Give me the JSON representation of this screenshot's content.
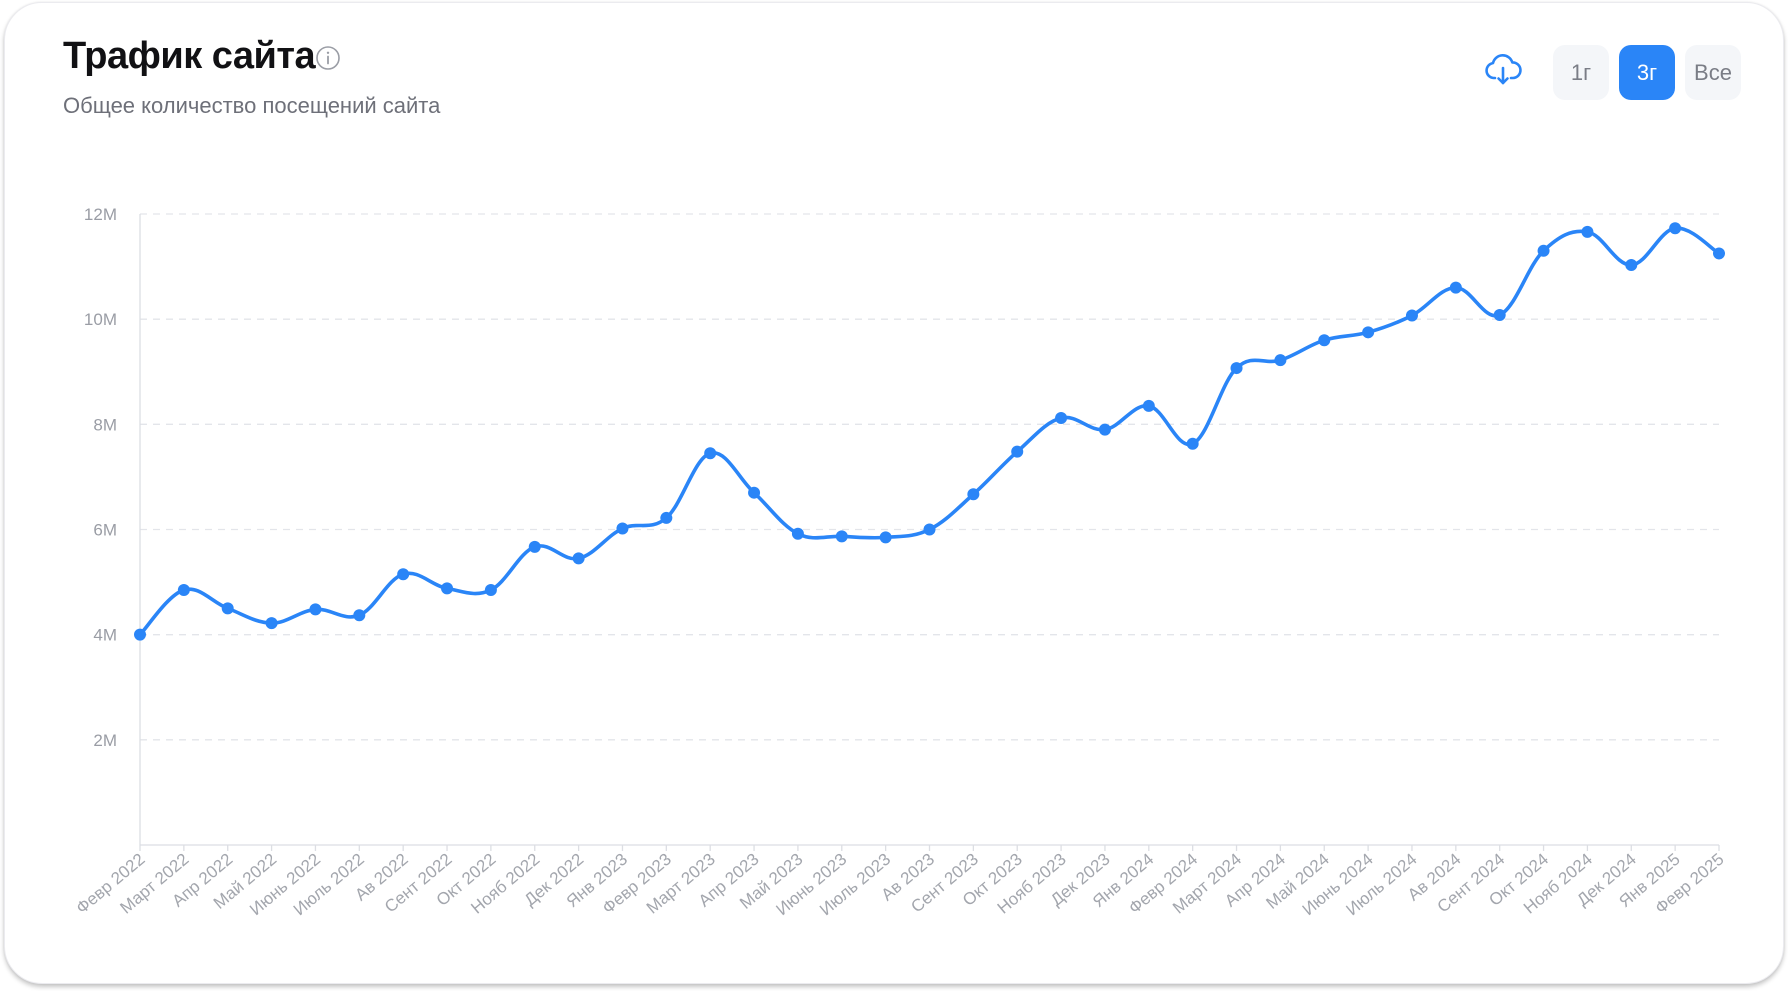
{
  "header": {
    "title": "Трафик сайта",
    "subtitle": "Общее количество посещений сайта"
  },
  "icons": {
    "info": "info-icon",
    "download": "cloud-download-icon"
  },
  "range_buttons": [
    {
      "label": "1г",
      "active": false
    },
    {
      "label": "3г",
      "active": true
    },
    {
      "label": "Все",
      "active": false
    }
  ],
  "colors": {
    "accent": "#2a85f7",
    "grid": "#e3e5ea",
    "axis": "#dcdee3"
  },
  "chart_data": {
    "type": "line",
    "grid": true,
    "ylim": [
      0,
      12
    ],
    "yticks": [
      {
        "value": 2,
        "label": "2M"
      },
      {
        "value": 4,
        "label": "4M"
      },
      {
        "value": 6,
        "label": "6M"
      },
      {
        "value": 8,
        "label": "8M"
      },
      {
        "value": 10,
        "label": "10M"
      },
      {
        "value": 12,
        "label": "12M"
      }
    ],
    "categories": [
      "Февр 2022",
      "Март 2022",
      "Апр 2022",
      "Май 2022",
      "Июнь 2022",
      "Июль 2022",
      "Ав 2022",
      "Сент 2022",
      "Окт 2022",
      "Нояб 2022",
      "Дек 2022",
      "Янв 2023",
      "Февр 2023",
      "Март 2023",
      "Апр 2023",
      "Май 2023",
      "Июнь 2023",
      "Июль 2023",
      "Ав 2023",
      "Сент 2023",
      "Окт 2023",
      "Нояб 2023",
      "Дек 2023",
      "Янв 2024",
      "Февр 2024",
      "Март 2024",
      "Апр 2024",
      "Май 2024",
      "Июнь 2024",
      "Июль 2024",
      "Ав 2024",
      "Сент 2024",
      "Окт 2024",
      "Нояб 2024",
      "Дек 2024",
      "Янв 2025",
      "Февр 2025"
    ],
    "series": [
      {
        "values": [
          4.0,
          4.85,
          4.5,
          4.22,
          4.48,
          4.37,
          5.15,
          4.88,
          4.85,
          5.67,
          5.45,
          6.02,
          6.22,
          7.45,
          6.7,
          5.92,
          5.87,
          5.85,
          6.0,
          6.67,
          7.48,
          8.12,
          7.9,
          8.35,
          7.63,
          9.07,
          9.22,
          9.6,
          9.75,
          10.07,
          10.6,
          10.08,
          11.3,
          11.66,
          11.03,
          11.73,
          11.25
        ],
        "color": "#2a85f7"
      }
    ]
  }
}
